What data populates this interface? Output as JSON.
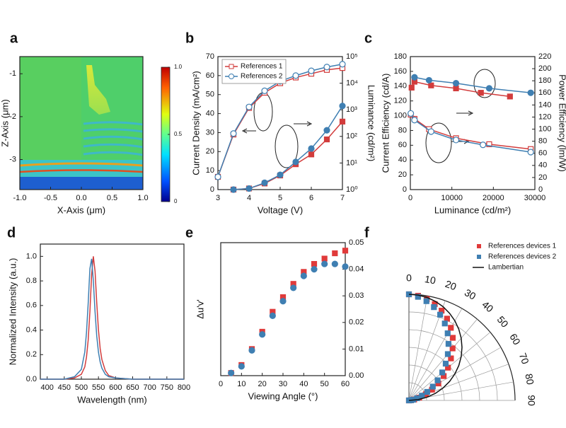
{
  "chart_data": [
    {
      "type": "heatmap",
      "label": "a",
      "xlabel": "X-Axis (μm)",
      "ylabel": "Z-Axis (μm)",
      "xlim": [
        -1,
        1
      ],
      "xticks": [
        {
          "value": -1,
          "label": "-1.0"
        },
        -0.5,
        {
          "value": 0,
          "label": "0.0"
        },
        0.5,
        {
          "value": 1,
          "label": "1.0"
        }
      ],
      "ylim": [
        -3.7,
        -0.6
      ],
      "yticks": [
        -1,
        -2,
        -3
      ],
      "clim": [
        0,
        1
      ],
      "cticks": [
        {
          "value": 1,
          "label": "1.0"
        },
        0.5,
        0
      ]
    },
    {
      "type": "line",
      "label": "b",
      "xlabel": "Voltage (V)",
      "ylabel": "Current Density (mA/cm²)",
      "y2label": "Luminance (cd/m²)",
      "x": [
        3,
        3.5,
        4,
        4.5,
        5,
        5.5,
        6,
        6.5,
        7
      ],
      "xlim": [
        3,
        7
      ],
      "xticks": [
        3,
        4,
        5,
        6,
        7
      ],
      "ylim": [
        0,
        70
      ],
      "yticks": [
        0,
        10,
        20,
        30,
        40,
        50,
        60,
        70
      ],
      "y2lim": [
        1,
        100000
      ],
      "y2scale": "log",
      "y2ticks": [
        {
          "value": 1,
          "label": "10⁰"
        },
        {
          "value": 10,
          "label": "10¹"
        },
        {
          "value": 100,
          "label": "10²"
        },
        {
          "value": 1000,
          "label": "10³"
        },
        {
          "value": 10000,
          "label": "10⁴"
        },
        {
          "value": 100000,
          "label": "10⁵"
        }
      ],
      "legend_loc": "upper left",
      "series": [
        {
          "name": "References  1",
          "color": "#d23c3c",
          "marker": "square",
          "filled": false,
          "line": true,
          "values": [
            6.7,
            29,
            43,
            51,
            56,
            59,
            61,
            63,
            64
          ]
        },
        {
          "name": "References  2",
          "color": "#3f7fb2",
          "marker": "circle",
          "filled": false,
          "line": true,
          "values": [
            6.7,
            29.5,
            43.5,
            52,
            57,
            60,
            62.5,
            64.5,
            66
          ]
        },
        {
          "name": "References  1",
          "color": "#d23c3c",
          "marker": "square",
          "filled": true,
          "line": true,
          "axis": "y2",
          "values": [
            null,
            1,
            1.1,
            1.7,
            3.4,
            9,
            21,
            77,
            360
          ]
        },
        {
          "name": "References  2",
          "color": "#3f7fb2",
          "marker": "circle",
          "filled": true,
          "line": true,
          "axis": "y2",
          "values": [
            null,
            1,
            1.1,
            1.8,
            3.6,
            11,
            35,
            170,
            1400
          ]
        }
      ]
    },
    {
      "type": "line",
      "label": "c",
      "xlabel": "Luminance (cd/m²)",
      "ylabel": "Current Efficiency (cd/A)",
      "y2label": "Power Efficiency (lm/W)",
      "xlim": [
        0,
        30000
      ],
      "xticks": [
        0,
        10000,
        20000,
        30000
      ],
      "ylim": [
        0,
        180
      ],
      "yticks": [
        0,
        20,
        40,
        60,
        80,
        100,
        120,
        140,
        160,
        180
      ],
      "y2lim": [
        0,
        220
      ],
      "y2ticks": [
        0,
        20,
        40,
        60,
        80,
        100,
        120,
        140,
        160,
        180,
        200,
        220
      ],
      "series": [
        {
          "color": "#d23c3c",
          "marker": "square",
          "filled": true,
          "line": true,
          "x": [
            300,
            1000,
            5000,
            11000,
            17000,
            24000
          ],
          "values": [
            138,
            146,
            141,
            137,
            131,
            126
          ]
        },
        {
          "color": "#3f7fb2",
          "marker": "circle",
          "filled": true,
          "line": true,
          "x": [
            1000,
            4500,
            11000,
            19000,
            29000
          ],
          "values": [
            152,
            148,
            144,
            137,
            131
          ]
        },
        {
          "color": "#d23c3c",
          "marker": "square",
          "filled": false,
          "line": true,
          "axis": "y2",
          "x": [
            100,
            1000,
            4500,
            11000,
            19000,
            29000
          ],
          "values": [
            124,
            117,
            100,
            85,
            75,
            67
          ]
        },
        {
          "color": "#3f7fb2",
          "marker": "circle",
          "filled": false,
          "line": true,
          "axis": "y2",
          "x": [
            100,
            1000,
            5000,
            11000,
            17500,
            29000
          ],
          "values": [
            126,
            115,
            96,
            82,
            74,
            62
          ]
        }
      ]
    },
    {
      "type": "line",
      "label": "d",
      "xlabel": "Wavelength (nm)",
      "ylabel": "Normalized Intensity (a.u.)",
      "x": [
        380,
        450,
        480,
        500,
        510,
        515,
        520,
        525,
        530,
        535,
        540,
        545,
        550,
        555,
        560,
        570,
        580,
        600,
        650,
        800
      ],
      "xlim": [
        380,
        800
      ],
      "xticks": [
        400,
        450,
        500,
        550,
        600,
        650,
        700,
        750,
        800
      ],
      "ylim": [
        0,
        1.1
      ],
      "yticks": [
        {
          "value": 0,
          "label": "0.0"
        },
        0.2,
        0.4,
        0.6,
        0.8,
        {
          "value": 1,
          "label": "1.0"
        }
      ],
      "series": [
        {
          "color": "#d23c3c",
          "line": true,
          "values": [
            0,
            0,
            0.01,
            0.04,
            0.1,
            0.18,
            0.32,
            0.55,
            0.85,
            1,
            0.88,
            0.62,
            0.4,
            0.25,
            0.16,
            0.07,
            0.03,
            0.01,
            0,
            0
          ]
        },
        {
          "color": "#3f7fb2",
          "line": true,
          "values": [
            0,
            0,
            0.02,
            0.08,
            0.22,
            0.38,
            0.62,
            0.9,
            0.98,
            0.8,
            0.55,
            0.35,
            0.22,
            0.14,
            0.09,
            0.04,
            0.02,
            0.01,
            0,
            0
          ]
        }
      ]
    },
    {
      "type": "line",
      "label": "e",
      "xlabel": "Viewing Angle (°)",
      "ylabel": "Δu'v'",
      "x": [
        5,
        10,
        15,
        20,
        25,
        30,
        35,
        40,
        45,
        50,
        55,
        60
      ],
      "xlim": [
        0,
        60
      ],
      "xticks": [
        0,
        10,
        20,
        30,
        40,
        50,
        60
      ],
      "y2lim": [
        0,
        0.05
      ],
      "y2ticks": [
        {
          "value": 0,
          "label": "0.00"
        },
        0.01,
        0.02,
        0.03,
        0.04,
        0.05
      ],
      "series": [
        {
          "color": "#e03a3a",
          "marker": "square",
          "filled": true,
          "line": false,
          "axis": "y2",
          "values": [
            0.001,
            0.004,
            0.01,
            0.0165,
            0.024,
            0.0295,
            0.0345,
            0.039,
            0.042,
            0.044,
            0.046,
            0.047
          ]
        },
        {
          "color": "#3f7fb2",
          "marker": "circle",
          "filled": true,
          "line": false,
          "axis": "y2",
          "values": [
            0.001,
            0.0035,
            0.0095,
            0.0155,
            0.0225,
            0.028,
            0.033,
            0.0375,
            0.04,
            0.042,
            0.042,
            0.041
          ]
        }
      ]
    },
    {
      "type": "polar",
      "label": "f",
      "theta": [
        0,
        5,
        10,
        15,
        20,
        25,
        30,
        35,
        40,
        45,
        50,
        55,
        60,
        65,
        70,
        75,
        80,
        85,
        90
      ],
      "thetaticks": [
        0,
        10,
        20,
        30,
        40,
        50,
        60,
        70,
        80,
        90
      ],
      "rlim": [
        0,
        1
      ],
      "legend_loc": "upper right",
      "series": [
        {
          "name": "References devices 1",
          "color": "#e03a3a",
          "marker": "square",
          "line": false,
          "values": [
            1,
            0.99,
            0.97,
            0.94,
            0.9,
            0.85,
            0.79,
            0.72,
            0.64,
            0.56,
            0.48,
            0.4,
            0.32,
            0.24,
            0.17,
            0.1,
            0.05,
            0.02,
            0
          ]
        },
        {
          "name": "References devices 2",
          "color": "#3f7fb2",
          "marker": "square",
          "line": false,
          "values": [
            1,
            0.98,
            0.95,
            0.91,
            0.86,
            0.8,
            0.73,
            0.65,
            0.57,
            0.49,
            0.41,
            0.33,
            0.26,
            0.19,
            0.13,
            0.08,
            0.04,
            0.02,
            0
          ]
        },
        {
          "name": "Lambertian",
          "color": "#111111",
          "line": true,
          "values": [
            1,
            0.996,
            0.985,
            0.966,
            0.94,
            0.906,
            0.866,
            0.819,
            0.766,
            0.707,
            0.643,
            0.574,
            0.5,
            0.423,
            0.342,
            0.259,
            0.174,
            0.087,
            0
          ]
        }
      ]
    }
  ]
}
